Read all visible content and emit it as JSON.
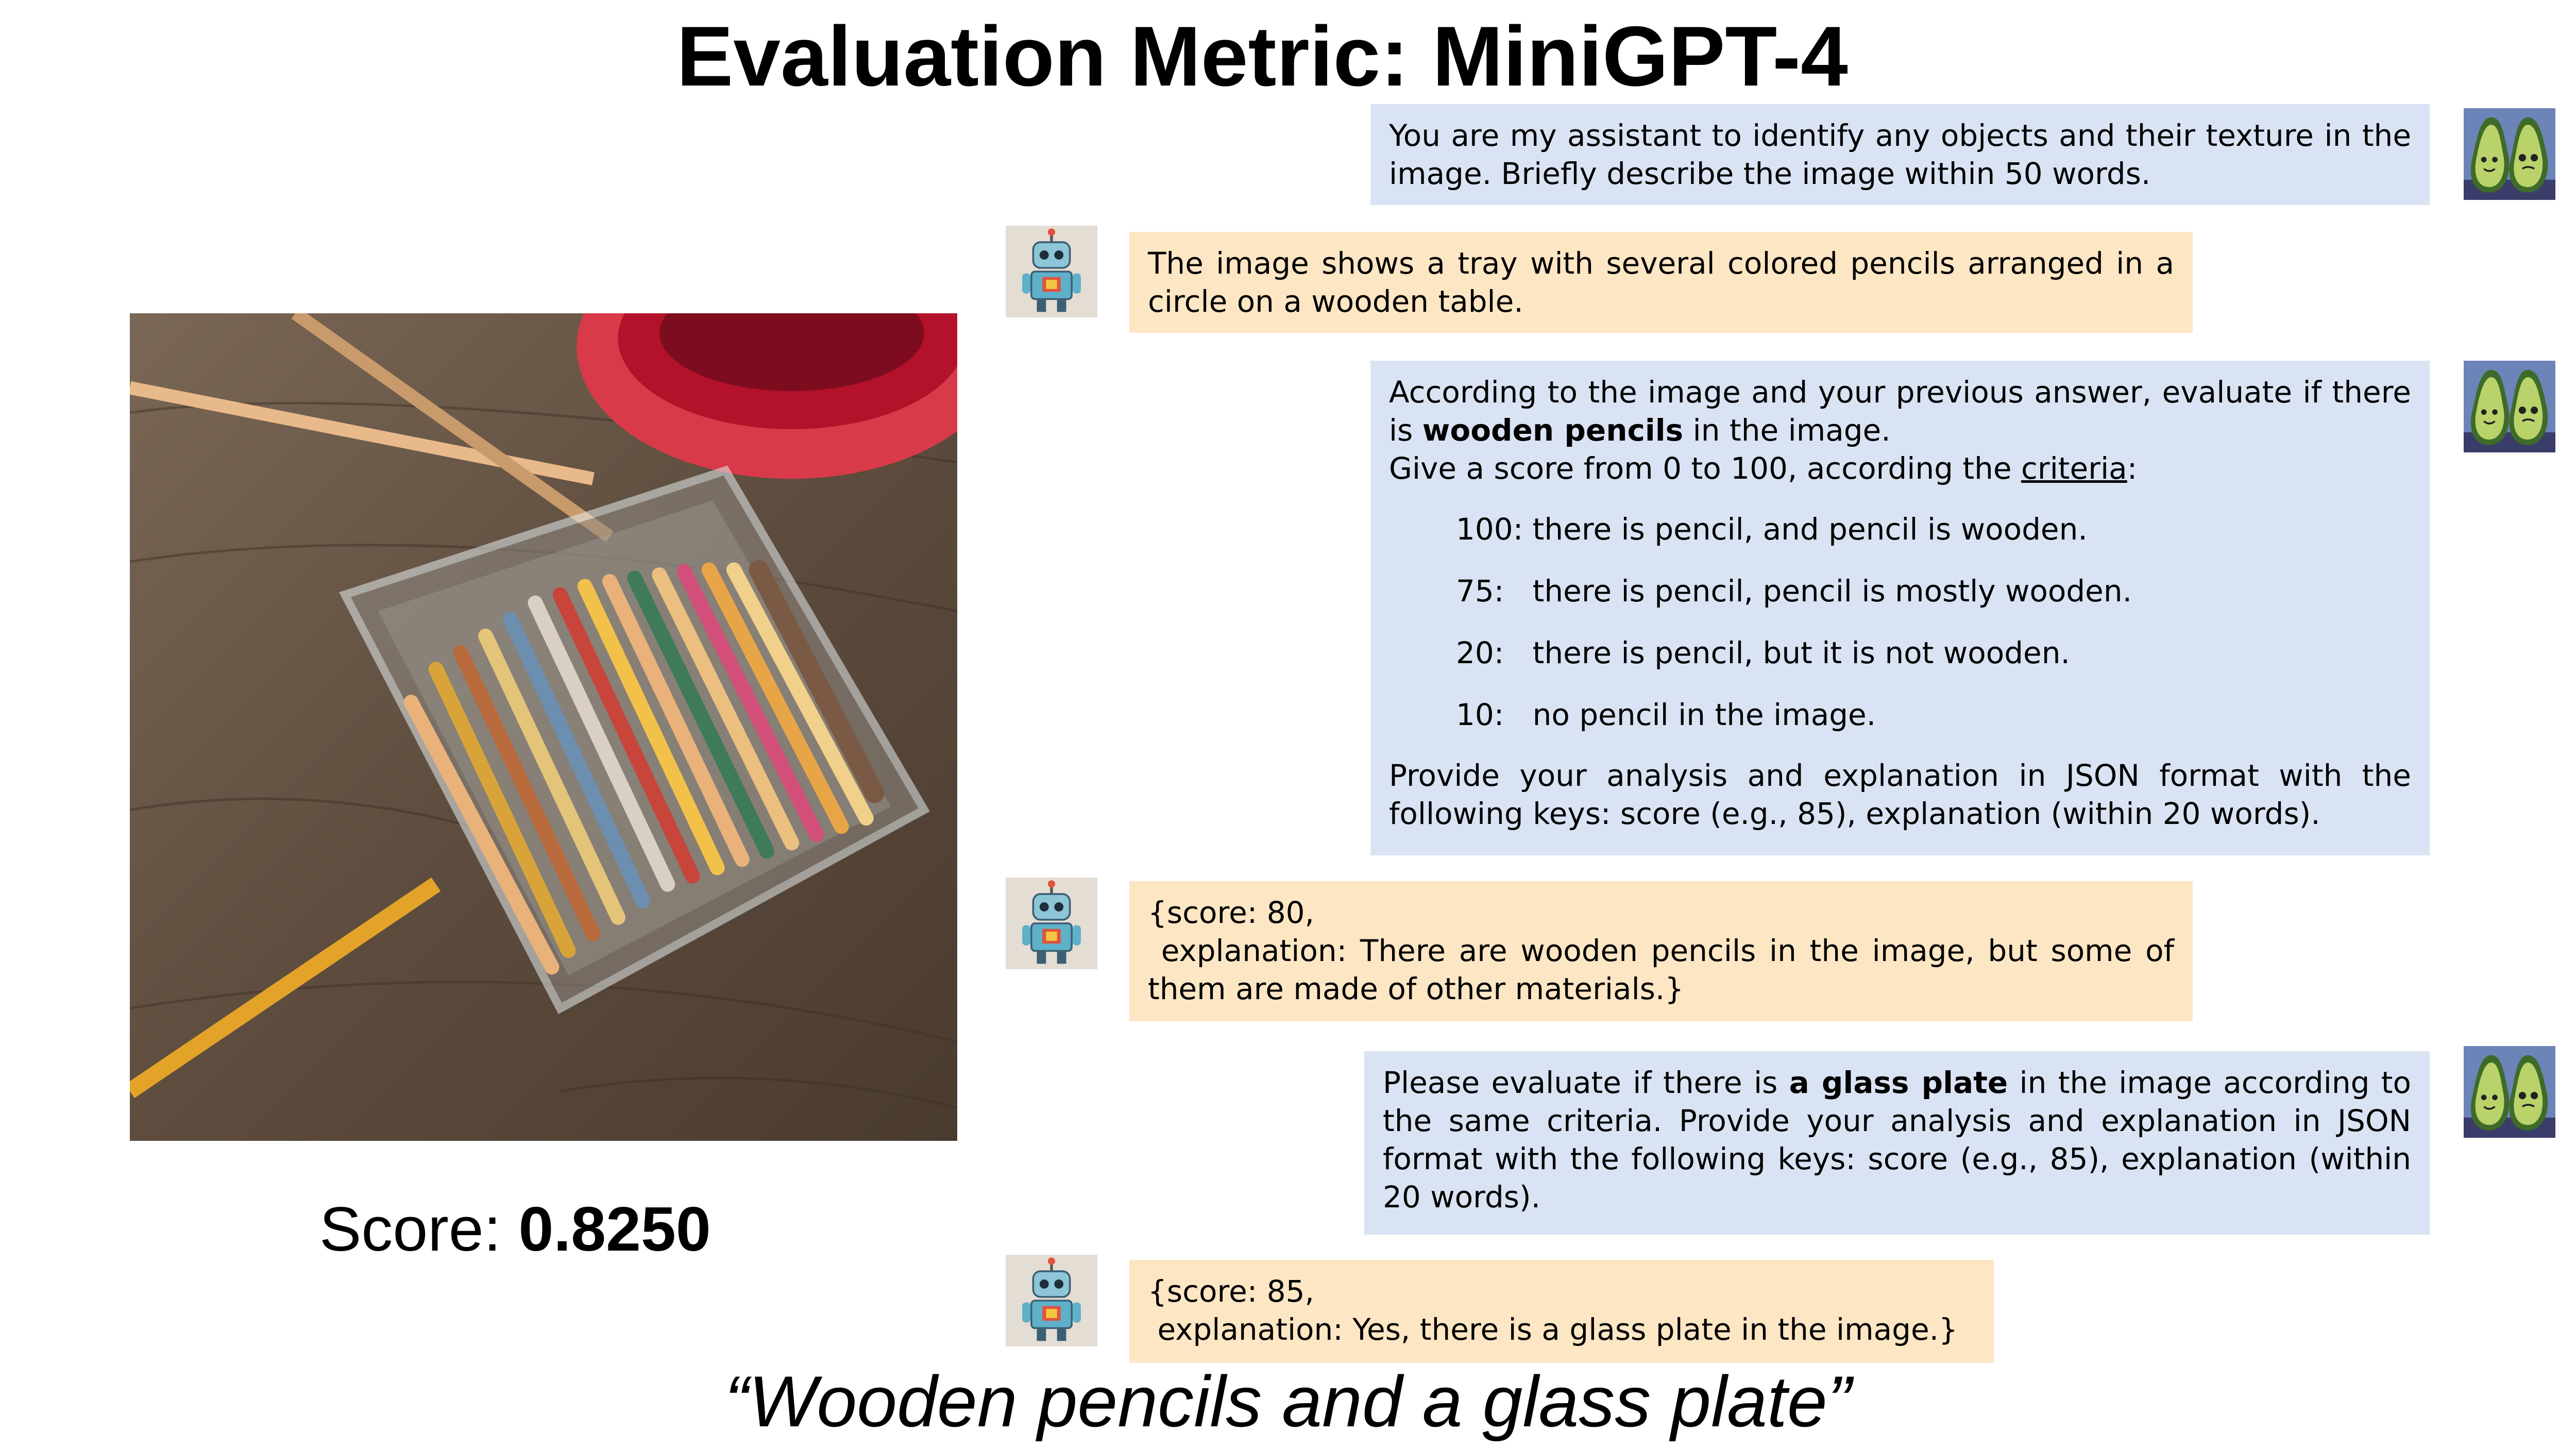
{
  "title": "Evaluation Metric: MiniGPT-4",
  "score": {
    "label": "Score:",
    "value": "0.8250"
  },
  "caption": "“Wooden pencils and a glass plate”",
  "conversation": {
    "m1": "You are my assistant to identify any objects and their texture in the image. Briefly describe the image within 50 words.",
    "m2": "The image shows a tray with several colored pencils arranged in a circle on a wooden table.",
    "m3": {
      "line1_pre": "According to the image and your previous answer, evaluate if there is ",
      "line1_bold": "wooden pencils",
      "line1_post": " in the image.",
      "line2_pre": "Give a score from 0 to 100, according the ",
      "line2_underline": "criteria",
      "line2_post": ":",
      "criteria": [
        "100: there is pencil, and pencil is wooden.",
        "75:   there is pencil, pencil is mostly wooden.",
        "20:   there is pencil, but it is not wooden.",
        "10:   no pencil in the image."
      ],
      "closing": "Provide your analysis and explanation in JSON format with the following keys: score (e.g., 85), explanation (within 20 words)."
    },
    "m4": {
      "line1": "{score: 80,",
      "line2": " explanation: There are wooden pencils in the image, but some of them are made of other materials.}"
    },
    "m5": {
      "pre": "Please evaluate if there is ",
      "bold": "a glass plate",
      "post": " in the image according to the same criteria. Provide your analysis and explanation in JSON format with the following keys: score (e.g., 85), explanation (within 20 words)."
    },
    "m6": {
      "line1": "{score: 85,",
      "line2": " explanation: Yes, there is a glass plate in the image.}"
    }
  },
  "icons": {
    "user_avatar": "avocado-pair-icon",
    "bot_avatar": "robot-icon"
  },
  "colors": {
    "user_bubble": "#dae3f3",
    "bot_bubble": "#fde6c4"
  }
}
